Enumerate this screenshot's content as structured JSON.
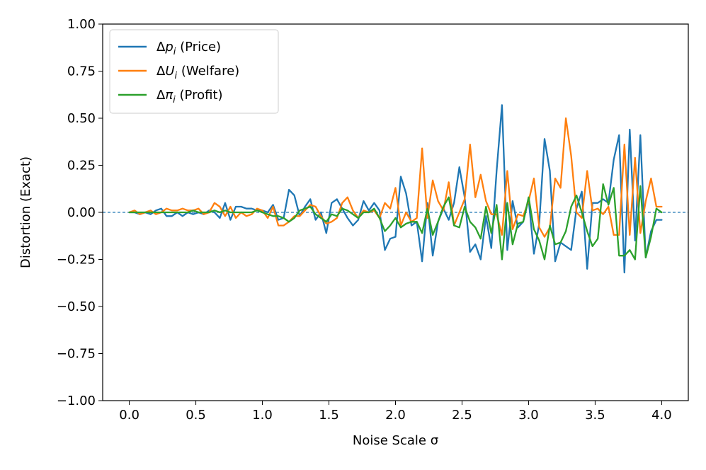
{
  "chart_data": {
    "type": "line",
    "xlabel": "Noise Scale σ",
    "ylabel": "Distortion (Exact)",
    "xlim": [
      -0.2,
      4.2
    ],
    "ylim": [
      -1.0,
      1.0
    ],
    "xticks": [
      "0.0",
      "0.5",
      "1.0",
      "1.5",
      "2.0",
      "2.5",
      "3.0",
      "3.5",
      "4.0"
    ],
    "xtick_values": [
      0.0,
      0.5,
      1.0,
      1.5,
      2.0,
      2.5,
      3.0,
      3.5,
      4.0
    ],
    "yticks": [
      "1.00",
      "0.75",
      "0.50",
      "0.25",
      "0.00",
      "−0.25",
      "−0.50",
      "−0.75",
      "−1.00"
    ],
    "ytick_values": [
      1.0,
      0.75,
      0.5,
      0.25,
      0.0,
      -0.25,
      -0.5,
      -0.75,
      -1.0
    ],
    "reference_line": {
      "y": 0.0,
      "style": "dashed",
      "color": "#1f77b4"
    },
    "legend_position": "top-left",
    "x": [
      0.0,
      0.04,
      0.08,
      0.12,
      0.16,
      0.2,
      0.24,
      0.28,
      0.32,
      0.36,
      0.4,
      0.44,
      0.48,
      0.52,
      0.56,
      0.6,
      0.64,
      0.68,
      0.72,
      0.76,
      0.8,
      0.84,
      0.88,
      0.92,
      0.96,
      1.0,
      1.04,
      1.08,
      1.12,
      1.16,
      1.2,
      1.24,
      1.28,
      1.32,
      1.36,
      1.4,
      1.44,
      1.48,
      1.52,
      1.56,
      1.6,
      1.64,
      1.68,
      1.72,
      1.76,
      1.8,
      1.84,
      1.88,
      1.92,
      1.96,
      2.0,
      2.04,
      2.08,
      2.12,
      2.16,
      2.2,
      2.24,
      2.28,
      2.32,
      2.36,
      2.4,
      2.44,
      2.48,
      2.52,
      2.56,
      2.6,
      2.64,
      2.68,
      2.72,
      2.76,
      2.8,
      2.84,
      2.88,
      2.92,
      2.96,
      3.0,
      3.04,
      3.08,
      3.12,
      3.16,
      3.2,
      3.24,
      3.28,
      3.32,
      3.36,
      3.4,
      3.44,
      3.48,
      3.52,
      3.56,
      3.6,
      3.64,
      3.68,
      3.72,
      3.76,
      3.8,
      3.84,
      3.88,
      3.92,
      3.96,
      4.0
    ],
    "series": [
      {
        "name": "Δp_i (Price)",
        "legend_main": "Δ",
        "legend_var": "p",
        "legend_sub": "i",
        "legend_rest": " (Price)",
        "color": "#1f77b4",
        "values": [
          0.0,
          0.0,
          -0.01,
          0.0,
          -0.01,
          0.01,
          0.02,
          -0.02,
          -0.02,
          0.0,
          -0.02,
          0.0,
          -0.01,
          0.0,
          -0.01,
          0.01,
          0.0,
          -0.03,
          0.05,
          -0.04,
          0.03,
          0.03,
          0.02,
          0.02,
          0.01,
          0.01,
          0.0,
          0.04,
          -0.04,
          -0.03,
          0.12,
          0.09,
          -0.02,
          0.03,
          0.07,
          -0.04,
          0.0,
          -0.11,
          0.05,
          0.07,
          0.02,
          -0.03,
          -0.07,
          -0.04,
          0.06,
          0.01,
          0.05,
          0.01,
          -0.2,
          -0.14,
          -0.13,
          0.19,
          0.1,
          -0.07,
          -0.05,
          -0.26,
          0.05,
          -0.23,
          -0.05,
          0.02,
          -0.04,
          0.05,
          0.24,
          0.08,
          -0.21,
          -0.17,
          -0.25,
          -0.02,
          -0.19,
          0.22,
          0.57,
          -0.2,
          0.06,
          -0.08,
          -0.05,
          0.07,
          -0.22,
          -0.06,
          0.39,
          0.22,
          -0.26,
          -0.16,
          -0.18,
          -0.2,
          0.02,
          0.11,
          -0.3,
          0.05,
          0.05,
          0.07,
          0.05,
          0.28,
          0.41,
          -0.32,
          0.44,
          -0.15,
          0.41,
          -0.24,
          -0.1,
          -0.04,
          -0.04
        ]
      },
      {
        "name": "ΔU_i (Welfare)",
        "legend_main": "Δ",
        "legend_var": "U",
        "legend_sub": "i",
        "legend_rest": " (Welfare)",
        "color": "#ff7f0e",
        "values": [
          0.0,
          0.01,
          -0.01,
          0.0,
          0.01,
          -0.01,
          0.0,
          0.02,
          0.01,
          0.01,
          0.02,
          0.01,
          0.01,
          0.02,
          -0.01,
          0.0,
          0.05,
          0.03,
          -0.02,
          0.03,
          -0.03,
          0.0,
          -0.02,
          -0.01,
          0.02,
          0.01,
          -0.03,
          0.03,
          -0.07,
          -0.07,
          -0.05,
          -0.02,
          -0.02,
          0.01,
          0.04,
          0.03,
          -0.02,
          -0.06,
          -0.05,
          -0.03,
          0.05,
          0.08,
          0.01,
          -0.03,
          0.01,
          0.0,
          0.01,
          -0.03,
          0.05,
          0.02,
          0.13,
          -0.07,
          0.0,
          -0.05,
          -0.03,
          0.34,
          -0.03,
          0.17,
          0.06,
          0.01,
          0.16,
          -0.07,
          0.0,
          0.07,
          0.36,
          0.08,
          0.2,
          0.06,
          -0.01,
          -0.01,
          -0.12,
          0.22,
          -0.09,
          -0.01,
          -0.02,
          0.06,
          0.18,
          -0.08,
          -0.13,
          -0.08,
          0.18,
          0.13,
          0.5,
          0.3,
          0.0,
          -0.03,
          0.22,
          0.01,
          0.02,
          -0.01,
          0.03,
          -0.12,
          -0.12,
          0.36,
          -0.12,
          0.29,
          -0.11,
          0.06,
          0.18,
          0.03,
          0.03
        ]
      },
      {
        "name": "Δπ_i (Profit)",
        "legend_main": "Δ",
        "legend_var": "π",
        "legend_sub": "i",
        "legend_rest": " (Profit)",
        "color": "#2ca02c",
        "values": [
          0.0,
          0.0,
          0.0,
          0.0,
          0.0,
          0.0,
          0.0,
          0.0,
          0.0,
          0.0,
          0.0,
          0.0,
          0.01,
          0.0,
          0.0,
          0.0,
          0.01,
          0.0,
          0.01,
          0.0,
          0.0,
          0.0,
          0.0,
          0.0,
          0.01,
          0.0,
          -0.01,
          -0.02,
          -0.02,
          -0.03,
          -0.05,
          -0.03,
          0.01,
          0.02,
          0.03,
          -0.01,
          -0.03,
          -0.05,
          -0.01,
          -0.02,
          0.02,
          0.01,
          -0.01,
          -0.03,
          0.0,
          0.0,
          0.02,
          -0.03,
          -0.1,
          -0.07,
          -0.03,
          -0.08,
          -0.06,
          -0.05,
          -0.05,
          -0.11,
          0.02,
          -0.12,
          -0.05,
          0.03,
          0.08,
          -0.07,
          -0.08,
          0.03,
          -0.05,
          -0.08,
          -0.14,
          0.03,
          -0.11,
          0.04,
          -0.25,
          0.05,
          -0.17,
          -0.06,
          -0.05,
          0.08,
          -0.09,
          -0.15,
          -0.25,
          -0.07,
          -0.17,
          -0.16,
          -0.1,
          0.03,
          0.09,
          0.0,
          -0.1,
          -0.18,
          -0.14,
          0.15,
          0.04,
          0.13,
          -0.23,
          -0.23,
          -0.2,
          -0.25,
          0.14,
          -0.24,
          -0.13,
          0.02,
          0.0
        ]
      }
    ]
  }
}
